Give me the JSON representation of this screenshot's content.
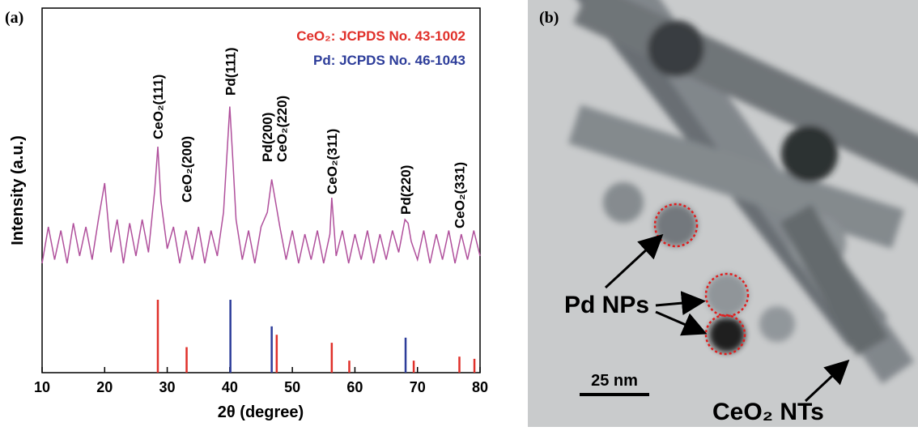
{
  "chart_data": {
    "type": "line",
    "panel_label": "(a)",
    "xlabel": "2θ (degree)",
    "ylabel": "Intensity (a.u.)",
    "xlim": [
      10,
      80
    ],
    "xticks": [
      10,
      20,
      30,
      40,
      50,
      60,
      70,
      80
    ],
    "ylim": [
      0,
      100
    ],
    "series": [
      {
        "type": "line",
        "color": "#b0509c",
        "x": [
          10,
          11,
          12,
          13,
          14,
          15,
          16,
          17,
          18,
          19,
          20,
          21,
          22,
          23,
          24,
          25,
          26,
          27,
          28,
          28.5,
          29,
          30,
          31,
          32,
          33,
          34,
          35,
          36,
          37,
          38,
          39,
          40,
          40.5,
          41,
          42,
          43,
          44,
          45,
          46,
          46.7,
          47,
          48,
          49,
          50,
          51,
          52,
          53,
          54,
          55,
          56,
          56.3,
          57,
          58,
          59,
          60,
          61,
          62,
          63,
          64,
          65,
          66,
          67,
          68,
          68.5,
          69,
          70,
          71,
          72,
          73,
          74,
          75,
          76,
          77,
          78,
          79,
          80
        ],
        "values": [
          30,
          40,
          31,
          39,
          30,
          41,
          32,
          40,
          31,
          42,
          52,
          33,
          42,
          30,
          41,
          32,
          42,
          33,
          50,
          62,
          47,
          34,
          40,
          30,
          39,
          31,
          40,
          30,
          39,
          32,
          44,
          73,
          58,
          42,
          31,
          39,
          30,
          40,
          44,
          53,
          50,
          40,
          31,
          39,
          30,
          38,
          31,
          39,
          30,
          38,
          48,
          32,
          39,
          30,
          38,
          31,
          39,
          30,
          38,
          31,
          39,
          33,
          42,
          41,
          36,
          31,
          39,
          30,
          38,
          31,
          39,
          30,
          38,
          31,
          39,
          32
        ]
      },
      {
        "type": "stick",
        "name": "CeO₂: JCPDS No. 43-1002",
        "color": "#e0302a",
        "x": [
          28.5,
          33.1,
          47.5,
          56.3,
          59.1,
          69.4,
          76.7,
          79.1
        ],
        "values": [
          20,
          7,
          10.4,
          8.2,
          3.3,
          3.3,
          4.4,
          3.8
        ]
      },
      {
        "type": "stick",
        "name": "Pd: JCPDS No. 46-1043",
        "color": "#2d3d9a",
        "x": [
          40.1,
          46.7,
          68.1
        ],
        "values": [
          20,
          12.7,
          9.6
        ]
      }
    ],
    "annotations": [
      {
        "text": "CeO₂(111)",
        "x": 28.5
      },
      {
        "text": "CeO₂(200)",
        "x": 33.1
      },
      {
        "text": "Pd(111)",
        "x": 40.1
      },
      {
        "text": "Pd(200)",
        "x": 46.0
      },
      {
        "text": "CeO₂(220)",
        "x": 48.3
      },
      {
        "text": "CeO₂(311)",
        "x": 56.3
      },
      {
        "text": "Pd(220)",
        "x": 68.1
      },
      {
        "text": "CeO₂(331)",
        "x": 76.7
      }
    ]
  },
  "image_panel": {
    "panel_label": "(b)",
    "np_label": "Pd NPs",
    "nt_label": "CeO₂ NTs",
    "scale_label": "25 nm"
  }
}
